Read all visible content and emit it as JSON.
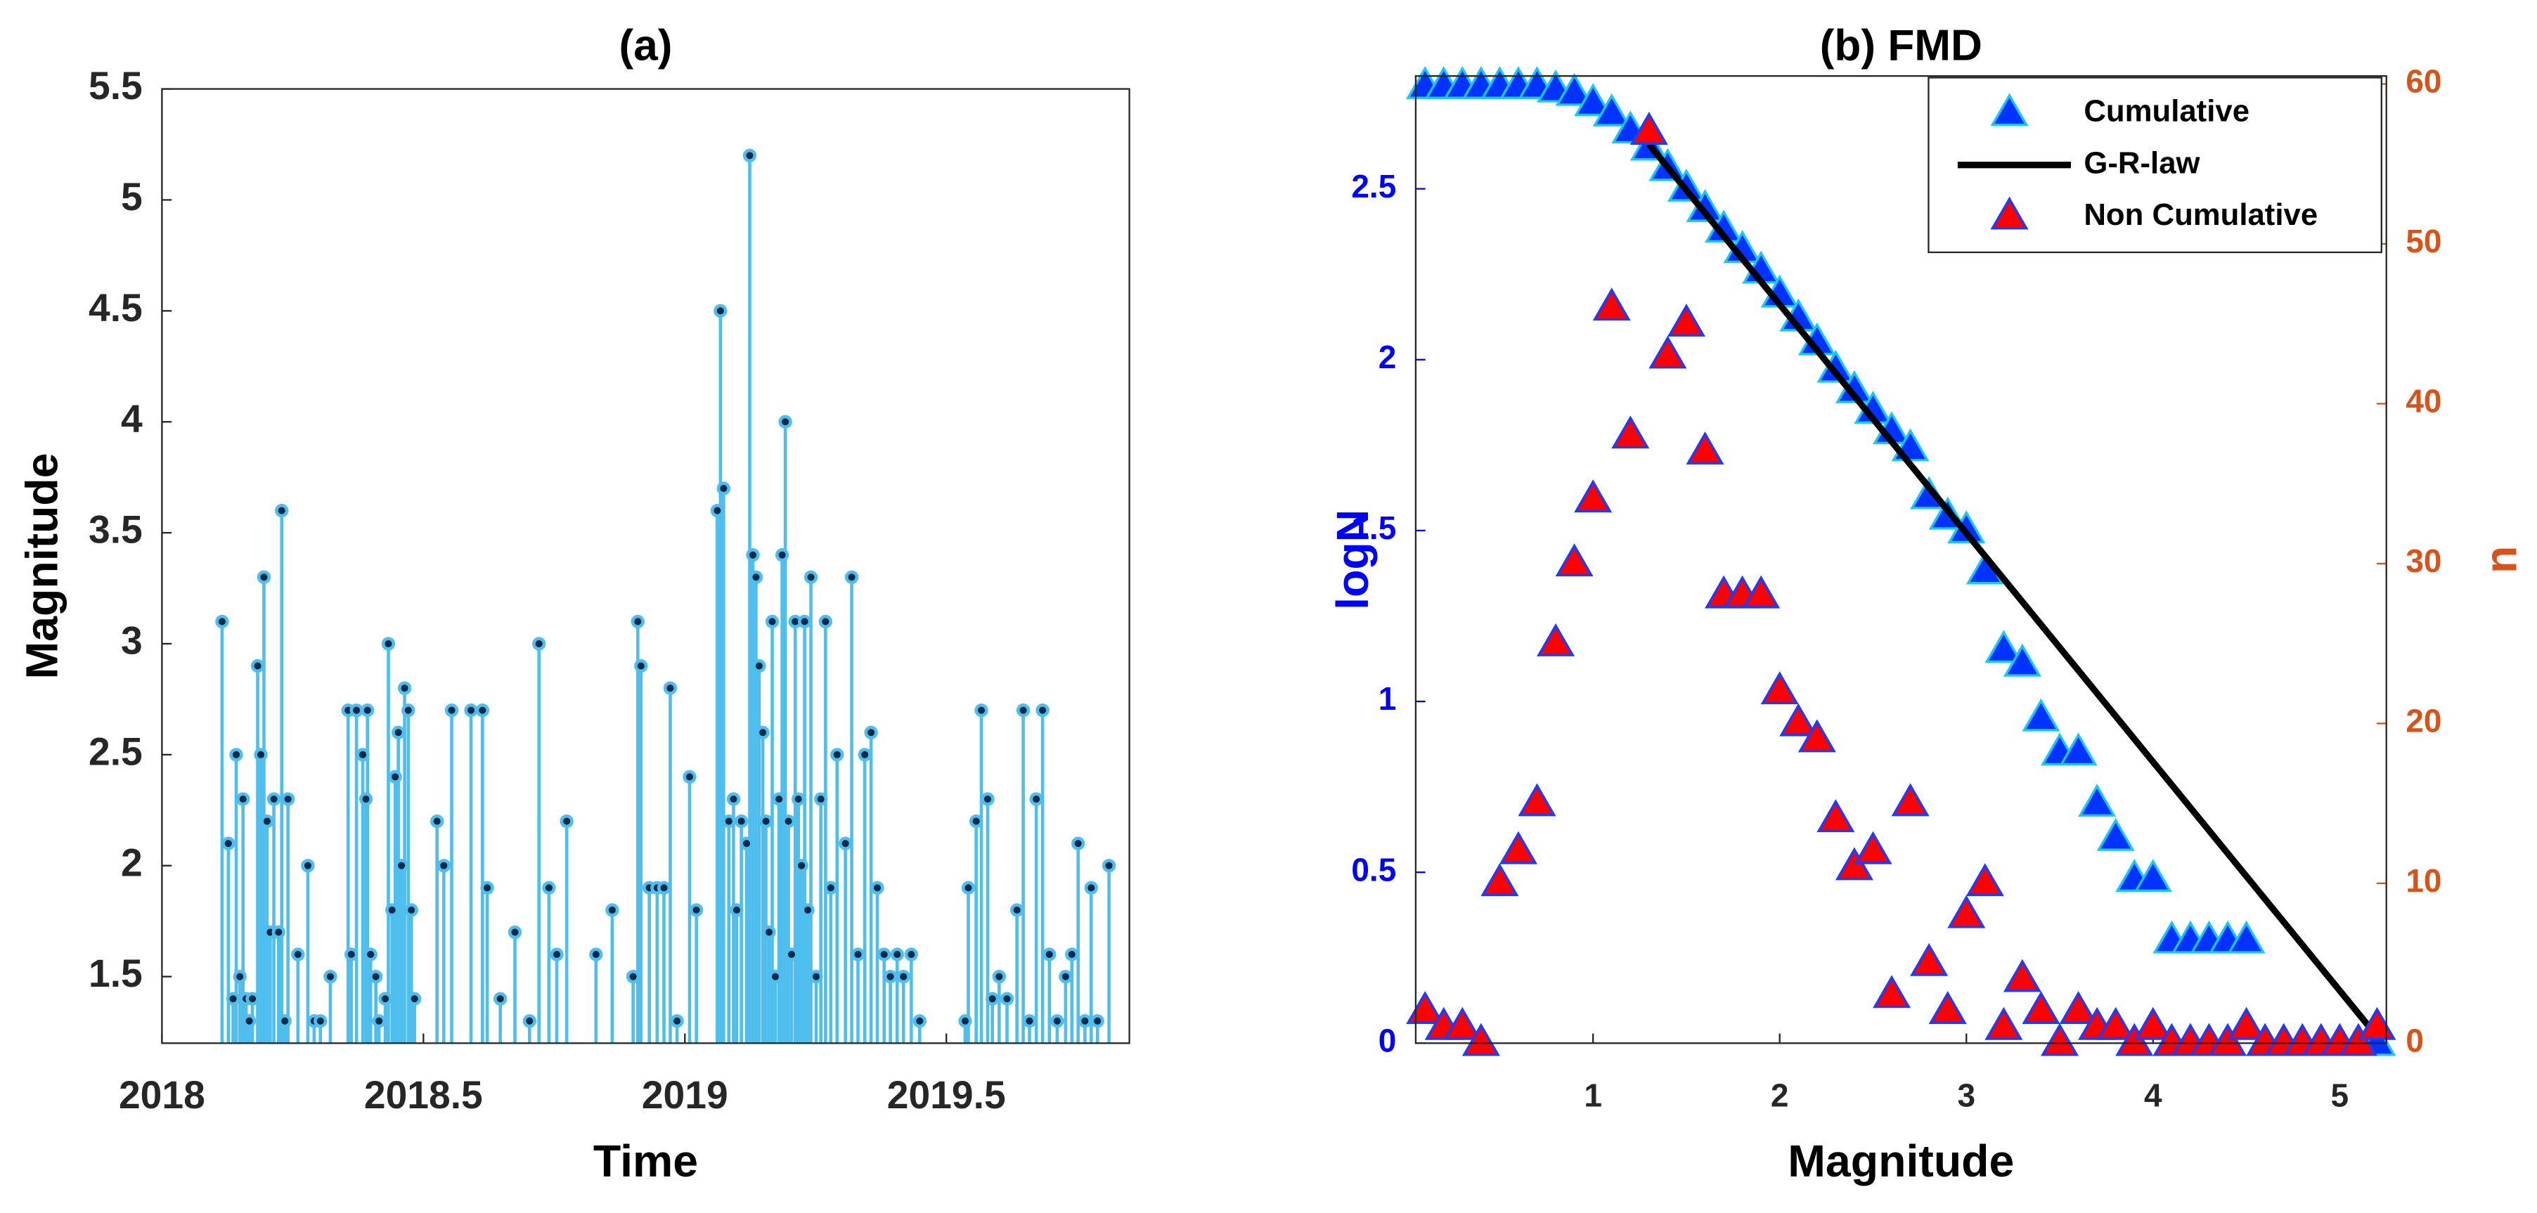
{
  "chart_data": [
    {
      "type": "stem",
      "title": "(a)",
      "xlabel": "Time",
      "ylabel": "Magnitude",
      "color": "#4dbeee",
      "marker_color": "#0b2a4a",
      "xlim": [
        2018,
        2019.85
      ],
      "ylim": [
        1.2,
        5.5
      ],
      "xticks": [
        2018,
        2018.5,
        2019,
        2019.5
      ],
      "yticks": [
        1.5,
        2,
        2.5,
        3,
        3.5,
        4,
        4.5,
        5,
        5.5
      ],
      "x": [
        2018.115,
        2018.127,
        2018.136,
        2018.142,
        2018.149,
        2018.155,
        2018.161,
        2018.167,
        2018.173,
        2018.183,
        2018.189,
        2018.195,
        2018.201,
        2018.207,
        2018.214,
        2018.223,
        2018.229,
        2018.235,
        2018.241,
        2018.26,
        2018.279,
        2018.291,
        2018.303,
        2018.322,
        2018.356,
        2018.362,
        2018.372,
        2018.384,
        2018.39,
        2018.393,
        2018.399,
        2018.409,
        2018.415,
        2018.427,
        2018.433,
        2018.44,
        2018.446,
        2018.452,
        2018.458,
        2018.464,
        2018.471,
        2018.477,
        2018.483,
        2018.526,
        2018.539,
        2018.554,
        2018.591,
        2018.613,
        2018.622,
        2018.647,
        2018.675,
        2018.703,
        2018.721,
        2018.74,
        2018.755,
        2018.774,
        2018.83,
        2018.861,
        2018.901,
        2018.91,
        2018.916,
        2018.932,
        2018.947,
        2018.96,
        2018.972,
        2018.985,
        2019.009,
        2019.022,
        2019.062,
        2019.068,
        2019.074,
        2019.084,
        2019.093,
        2019.099,
        2019.108,
        2019.118,
        2019.124,
        2019.13,
        2019.136,
        2019.142,
        2019.149,
        2019.155,
        2019.161,
        2019.167,
        2019.173,
        2019.18,
        2019.186,
        2019.192,
        2019.198,
        2019.204,
        2019.211,
        2019.217,
        2019.223,
        2019.229,
        2019.235,
        2019.241,
        2019.251,
        2019.26,
        2019.269,
        2019.279,
        2019.291,
        2019.307,
        2019.319,
        2019.331,
        2019.344,
        2019.356,
        2019.368,
        2019.381,
        2019.393,
        2019.406,
        2019.418,
        2019.433,
        2019.449,
        2019.536,
        2019.542,
        2019.557,
        2019.567,
        2019.579,
        2019.588,
        2019.601,
        2019.616,
        2019.635,
        2019.647,
        2019.659,
        2019.672,
        2019.684,
        2019.697,
        2019.712,
        2019.728,
        2019.74,
        2019.752,
        2019.765,
        2019.777,
        2019.789,
        2019.811
      ],
      "values": [
        3.1,
        2.1,
        1.4,
        2.5,
        1.5,
        2.3,
        1.4,
        1.3,
        1.4,
        2.9,
        2.5,
        3.3,
        2.2,
        1.7,
        2.3,
        1.7,
        3.6,
        1.3,
        2.3,
        1.6,
        2.0,
        1.3,
        1.3,
        1.5,
        2.7,
        1.6,
        2.7,
        2.5,
        2.3,
        2.7,
        1.6,
        1.5,
        1.3,
        1.4,
        3.0,
        1.8,
        2.4,
        2.6,
        2.0,
        2.8,
        2.7,
        1.8,
        1.4,
        2.2,
        2.0,
        2.7,
        2.7,
        2.7,
        1.9,
        1.4,
        1.7,
        1.3,
        3.0,
        1.9,
        1.6,
        2.2,
        1.6,
        1.8,
        1.5,
        3.1,
        2.9,
        1.9,
        1.9,
        1.9,
        2.8,
        1.3,
        2.4,
        1.8,
        3.6,
        4.5,
        3.7,
        2.2,
        2.3,
        1.8,
        2.2,
        2.1,
        5.2,
        3.4,
        3.3,
        2.9,
        2.6,
        2.2,
        1.7,
        3.1,
        1.5,
        2.3,
        3.4,
        4.0,
        2.2,
        1.6,
        3.1,
        2.3,
        2.0,
        3.1,
        1.8,
        3.3,
        1.5,
        2.3,
        3.1,
        1.9,
        2.5,
        2.1,
        3.3,
        1.6,
        2.5,
        2.6,
        1.9,
        1.6,
        1.5,
        1.6,
        1.5,
        1.6,
        1.3,
        1.3,
        1.9,
        2.2,
        2.7,
        2.3,
        1.4,
        1.5,
        1.4,
        1.8,
        2.7,
        1.3,
        2.3,
        2.7,
        1.6,
        1.3,
        1.5,
        1.6,
        2.1,
        1.3,
        1.9,
        1.3,
        2.0
      ]
    },
    {
      "type": "scatter",
      "title": "(b) FMD",
      "xlabel": "Magnitude",
      "ylabel": "logN",
      "y2label": "n",
      "ylabel_color": "#0000ff",
      "y2label_color": "#d95319",
      "xlim": [
        0.05,
        5.25
      ],
      "ylim": [
        0,
        2.83
      ],
      "y2lim": [
        0,
        60.5
      ],
      "xticks": [
        1,
        2,
        3,
        4,
        5
      ],
      "yticks": [
        0,
        0.5,
        1,
        1.5,
        2,
        2.5
      ],
      "y2ticks": [
        0,
        10,
        20,
        30,
        40,
        50,
        60
      ],
      "legend": "northeast",
      "series": [
        {
          "name": "Cumulative",
          "mode": "markers",
          "color": "#0033ff",
          "edge": "#18c8f0",
          "x": [
            0.1,
            0.2,
            0.3,
            0.4,
            0.5,
            0.6,
            0.7,
            0.8,
            0.9,
            1.0,
            1.1,
            1.2,
            1.3,
            1.4,
            1.5,
            1.6,
            1.7,
            1.8,
            1.9,
            2.0,
            2.1,
            2.2,
            2.3,
            2.4,
            2.5,
            2.6,
            2.7,
            2.8,
            2.9,
            3.0,
            3.1,
            3.2,
            3.3,
            3.4,
            3.5,
            3.6,
            3.7,
            3.8,
            3.9,
            4.0,
            4.1,
            4.2,
            4.3,
            4.4,
            4.5,
            5.2
          ],
          "values": [
            2.8,
            2.8,
            2.8,
            2.8,
            2.8,
            2.8,
            2.8,
            2.79,
            2.78,
            2.75,
            2.72,
            2.67,
            2.62,
            2.56,
            2.5,
            2.44,
            2.38,
            2.32,
            2.26,
            2.19,
            2.12,
            2.05,
            1.97,
            1.91,
            1.85,
            1.79,
            1.74,
            1.6,
            1.54,
            1.5,
            1.38,
            1.15,
            1.11,
            0.95,
            0.85,
            0.85,
            0.7,
            0.6,
            0.48,
            0.48,
            0.3,
            0.3,
            0.3,
            0.3,
            0.3,
            0
          ]
        },
        {
          "name": "G-R-law",
          "mode": "line",
          "color": "#000000",
          "x": [
            1.3,
            5.2
          ],
          "values": [
            2.63,
            0.02
          ]
        },
        {
          "name": "Non Cumulative",
          "mode": "markers",
          "axis": "y2",
          "color": "#ff0000",
          "edge": "#1a3cff",
          "x": [
            0.1,
            0.2,
            0.3,
            0.4,
            0.5,
            0.6,
            0.7,
            0.8,
            0.9,
            1.0,
            1.1,
            1.2,
            1.3,
            1.4,
            1.5,
            1.6,
            1.7,
            1.8,
            1.9,
            2.0,
            2.1,
            2.2,
            2.3,
            2.4,
            2.5,
            2.6,
            2.7,
            2.8,
            2.9,
            3.0,
            3.1,
            3.2,
            3.3,
            3.4,
            3.5,
            3.6,
            3.7,
            3.8,
            3.9,
            4.0,
            4.1,
            4.2,
            4.3,
            4.4,
            4.5,
            4.6,
            4.7,
            4.8,
            4.9,
            5.0,
            5.1,
            5.2
          ],
          "values": [
            2,
            1,
            1,
            0,
            10,
            12,
            15,
            25,
            30,
            34,
            46,
            38,
            57,
            43,
            45,
            37,
            28,
            28,
            28,
            22,
            20,
            19,
            14,
            11,
            12,
            3,
            15,
            5,
            2,
            8,
            10,
            1,
            4,
            2,
            0,
            2,
            1,
            1,
            0,
            1,
            0,
            0,
            0,
            0,
            1,
            0,
            0,
            0,
            0,
            0,
            0,
            1
          ]
        }
      ]
    }
  ]
}
